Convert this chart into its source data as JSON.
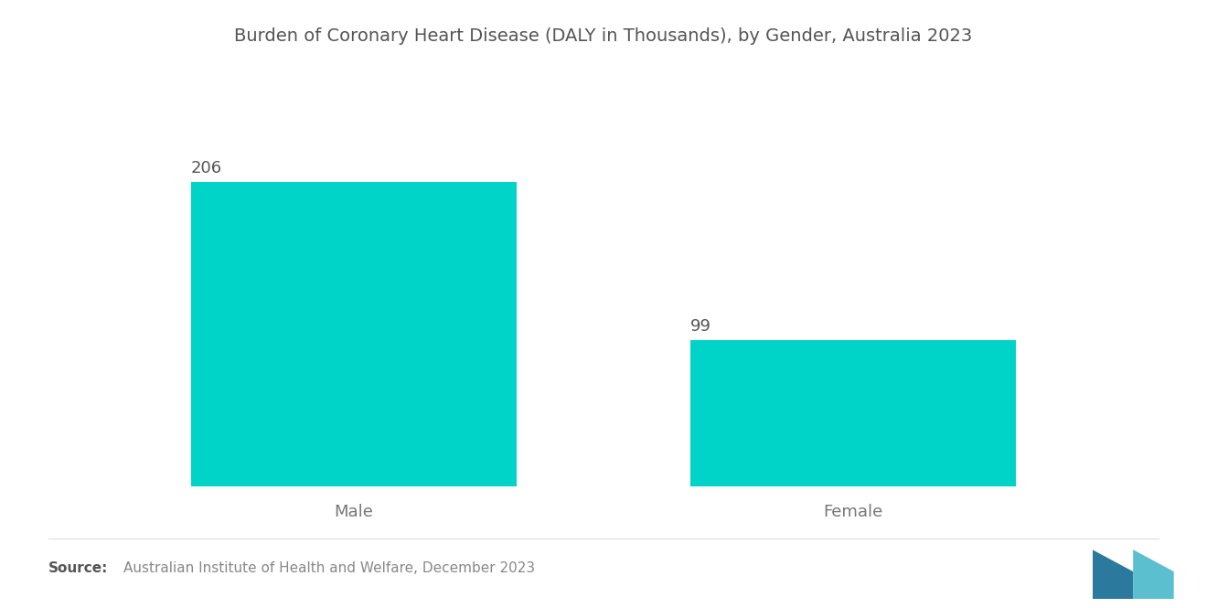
{
  "title": "Burden of Coronary Heart Disease (DALY in Thousands), by Gender, Australia 2023",
  "categories": [
    "Male",
    "Female"
  ],
  "values": [
    206,
    99
  ],
  "bar_color": "#00D4C8",
  "bar_width": 0.3,
  "value_labels": [
    "206",
    "99"
  ],
  "source_bold": "Source:",
  "source_text": "Australian Institute of Health and Welfare, December 2023",
  "background_color": "#FFFFFF",
  "title_color": "#555555",
  "label_color": "#777777",
  "value_color": "#555555",
  "title_fontsize": 14,
  "label_fontsize": 13,
  "value_fontsize": 13,
  "source_fontsize": 11,
  "ylim": [
    0,
    280
  ],
  "x_positions": [
    0.27,
    0.73
  ],
  "xlim": [
    0,
    1.0
  ]
}
